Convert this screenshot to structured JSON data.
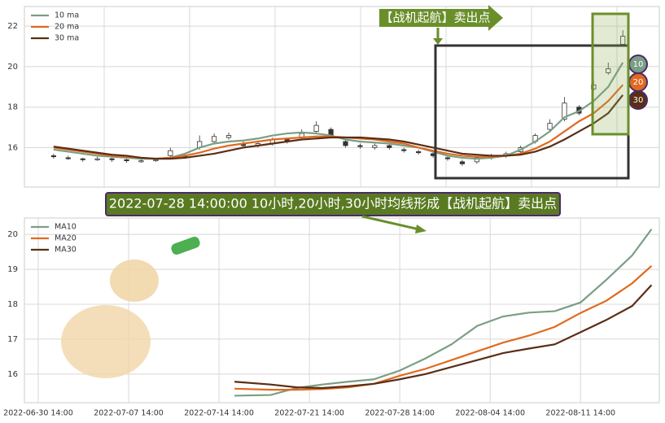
{
  "chart_data": [
    {
      "type": "candlestick",
      "legend": "upper left",
      "grid": true,
      "x": [
        0,
        1,
        2,
        3,
        4,
        5,
        6,
        7,
        8,
        9,
        10,
        11,
        12,
        13,
        14,
        15,
        16,
        17,
        18,
        19,
        20,
        21,
        22,
        23,
        24,
        25,
        26,
        27,
        28,
        29,
        30,
        31,
        32,
        33,
        34,
        35,
        36,
        37,
        38,
        39
      ],
      "open": [
        15.6,
        15.5,
        15.45,
        15.4,
        15.45,
        15.4,
        15.3,
        15.35,
        15.6,
        15.6,
        16.0,
        16.3,
        16.5,
        16.2,
        16.1,
        16.2,
        16.4,
        16.5,
        16.8,
        16.9,
        16.3,
        16.1,
        16.0,
        16.1,
        15.9,
        15.8,
        15.7,
        15.5,
        15.3,
        15.3,
        15.5,
        15.6,
        15.8,
        16.3,
        16.9,
        17.4,
        18.0,
        18.9,
        19.7,
        21.1
      ],
      "high": [
        15.7,
        15.6,
        15.5,
        15.55,
        15.5,
        15.45,
        15.45,
        15.5,
        16.0,
        15.7,
        16.6,
        16.7,
        16.75,
        16.3,
        16.3,
        16.5,
        16.5,
        16.9,
        17.3,
        17.0,
        16.4,
        16.2,
        16.2,
        16.2,
        16.0,
        15.9,
        15.8,
        15.6,
        15.4,
        15.6,
        15.7,
        15.8,
        16.1,
        16.7,
        17.4,
        18.5,
        18.1,
        19.3,
        20.2,
        21.8
      ],
      "low": [
        15.45,
        15.4,
        15.3,
        15.35,
        15.3,
        15.25,
        15.25,
        15.3,
        15.5,
        15.45,
        15.9,
        16.2,
        16.4,
        16.0,
        16.0,
        16.1,
        16.2,
        16.4,
        16.7,
        16.5,
        16.0,
        15.95,
        15.9,
        15.9,
        15.75,
        15.65,
        15.5,
        15.35,
        15.1,
        15.2,
        15.4,
        15.5,
        15.7,
        16.2,
        16.8,
        17.3,
        17.6,
        18.8,
        19.6,
        21.0
      ],
      "close": [
        15.55,
        15.45,
        15.4,
        15.45,
        15.4,
        15.35,
        15.35,
        15.4,
        15.85,
        15.55,
        16.3,
        16.55,
        16.6,
        16.1,
        16.2,
        16.4,
        16.3,
        16.7,
        17.1,
        16.6,
        16.1,
        16.05,
        16.1,
        16.0,
        15.85,
        15.75,
        15.6,
        15.45,
        15.2,
        15.5,
        15.6,
        15.7,
        16.0,
        16.6,
        17.2,
        18.2,
        17.7,
        19.1,
        19.9,
        21.5
      ],
      "series": [
        {
          "name": "10 ma",
          "color": "#7a9e85",
          "values": [
            15.9,
            15.8,
            15.7,
            15.6,
            15.55,
            15.5,
            15.45,
            15.45,
            15.5,
            15.7,
            16.0,
            16.2,
            16.3,
            16.35,
            16.45,
            16.6,
            16.7,
            16.75,
            16.7,
            16.6,
            16.4,
            16.3,
            16.25,
            16.2,
            16.1,
            16.0,
            15.8,
            15.6,
            15.5,
            15.45,
            15.5,
            15.6,
            15.9,
            16.3,
            16.8,
            17.5,
            17.8,
            18.3,
            19.0,
            20.2
          ]
        },
        {
          "name": "20 ma",
          "color": "#e06a1f",
          "values": [
            16.0,
            15.9,
            15.8,
            15.7,
            15.6,
            15.55,
            15.5,
            15.45,
            15.5,
            15.6,
            15.75,
            15.95,
            16.1,
            16.2,
            16.3,
            16.4,
            16.45,
            16.5,
            16.55,
            16.55,
            16.5,
            16.45,
            16.4,
            16.3,
            16.2,
            16.0,
            15.85,
            15.7,
            15.6,
            15.55,
            15.55,
            15.6,
            15.7,
            15.95,
            16.3,
            16.8,
            17.3,
            17.7,
            18.3,
            19.1
          ]
        },
        {
          "name": "30 ma",
          "color": "#5a2e16",
          "values": [
            16.05,
            15.95,
            15.85,
            15.75,
            15.65,
            15.6,
            15.5,
            15.45,
            15.45,
            15.5,
            15.6,
            15.7,
            15.85,
            16.0,
            16.1,
            16.2,
            16.3,
            16.4,
            16.45,
            16.5,
            16.5,
            16.5,
            16.45,
            16.4,
            16.3,
            16.15,
            16.0,
            15.85,
            15.7,
            15.65,
            15.6,
            15.6,
            15.65,
            15.8,
            16.05,
            16.4,
            16.8,
            17.2,
            17.7,
            18.6
          ]
        }
      ],
      "xlim": [
        -2,
        41.5
      ],
      "ylim": [
        14.05,
        22.97
      ],
      "yticks": [
        16,
        18,
        20,
        22
      ],
      "annotations": [
        "【战机起航】卖出点"
      ],
      "end_labels": [
        "10",
        "20",
        "30"
      ]
    },
    {
      "type": "line",
      "legend": "upper left",
      "grid": true,
      "x": [
        15.2,
        18,
        20,
        22,
        24,
        26,
        28,
        30,
        32,
        34,
        36,
        38,
        40,
        42,
        44,
        46,
        47.5
      ],
      "series": [
        {
          "name": "MA10",
          "color": "#7a9e85",
          "values": [
            15.38,
            15.4,
            15.6,
            15.7,
            15.78,
            15.85,
            16.1,
            16.45,
            16.85,
            17.38,
            17.65,
            17.76,
            17.8,
            18.05,
            18.7,
            19.4,
            20.15
          ]
        },
        {
          "name": "MA20",
          "color": "#e06a1f",
          "values": [
            15.58,
            15.55,
            15.55,
            15.57,
            15.62,
            15.72,
            15.95,
            16.15,
            16.4,
            16.65,
            16.9,
            17.1,
            17.35,
            17.75,
            18.1,
            18.6,
            19.1
          ]
        },
        {
          "name": "MA30",
          "color": "#5a2e16",
          "values": [
            15.78,
            15.7,
            15.62,
            15.6,
            15.65,
            15.72,
            15.85,
            16.0,
            16.2,
            16.4,
            16.6,
            16.73,
            16.85,
            17.2,
            17.55,
            17.95,
            18.55
          ]
        }
      ],
      "xlim": [
        -1.07,
        48.1
      ],
      "ylim": [
        15.18,
        20.47
      ],
      "xticks": [
        {
          "value": 0,
          "label": "2022-06-30 14:00"
        },
        {
          "value": 7,
          "label": "2022-07-07 14:00"
        },
        {
          "value": 14,
          "label": "2022-07-14 14:00"
        },
        {
          "value": 21,
          "label": "2022-07-21 14:00"
        },
        {
          "value": 28,
          "label": "2022-07-28 14:00"
        },
        {
          "value": 35,
          "label": "2022-08-04 14:00"
        },
        {
          "value": 42,
          "label": "2022-08-11 14:00"
        }
      ],
      "yticks": [
        16,
        17,
        18,
        19,
        20
      ],
      "annotations": [
        "2022-07-28 14:00:00 10小时,20小时,30小时均线形成【战机起航】卖出点"
      ]
    }
  ]
}
